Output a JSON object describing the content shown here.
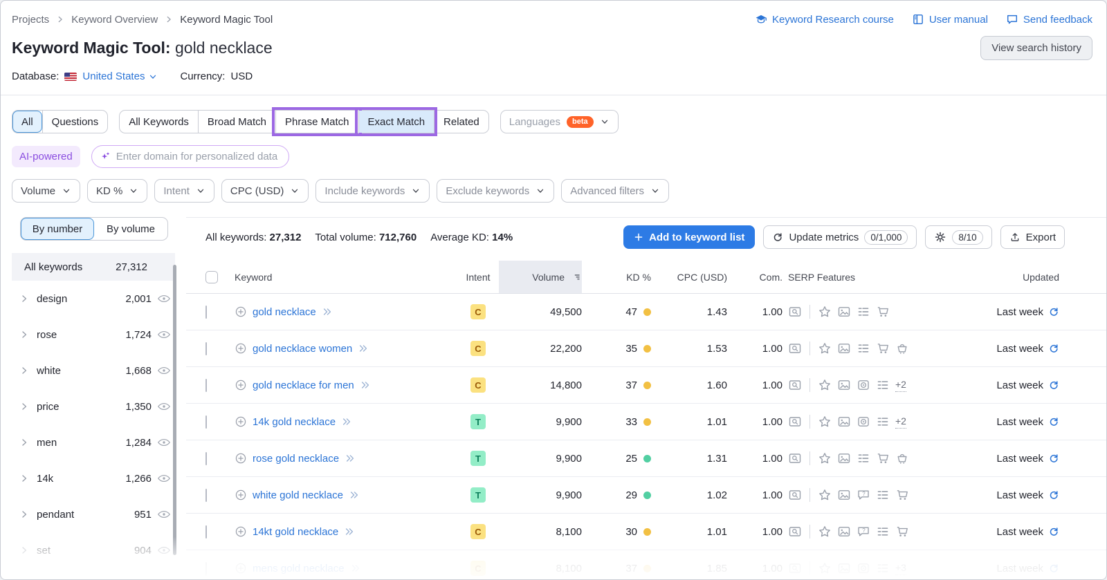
{
  "theme": {
    "accent-blue": "#2b74d6",
    "button-blue": "#2d7be5",
    "annotation-purple": "#9c68e3",
    "beta-orange": "#ff6329",
    "ai-purple": "#8a4de0",
    "intent-commercial-bg": "#fbe180",
    "intent-commercial-text": "#9a5a08",
    "intent-transactional-bg": "#93edc7",
    "intent-transactional-text": "#0c7f5b",
    "kd-medium": "#f2c043",
    "kd-easy": "#52cfa2"
  },
  "page": {
    "breadcrumb": [
      "Projects",
      "Keyword Overview",
      "Keyword Magic Tool"
    ],
    "top_links": [
      {
        "icon": "grad-cap",
        "label": "Keyword Research course"
      },
      {
        "icon": "book",
        "label": "User manual"
      },
      {
        "icon": "chat",
        "label": "Send feedback"
      }
    ],
    "title": "Keyword Magic Tool:",
    "title_query": "gold necklace",
    "view_search_history": "View search history",
    "database_label": "Database:",
    "database_value": "United States",
    "currency_label": "Currency:",
    "currency_value": "USD"
  },
  "tabs": {
    "group1": [
      "All",
      "Questions"
    ],
    "group1_selected": "All",
    "group2": [
      "All Keywords",
      "Broad Match",
      "Phrase Match",
      "Exact Match",
      "Related"
    ],
    "group2_selected": "Exact Match",
    "group2_annotated": [
      "Phrase Match",
      "Exact Match"
    ],
    "languages_label": "Languages",
    "beta_badge": "beta"
  },
  "ai_bar": {
    "label": "AI-powered",
    "placeholder": "Enter domain for personalized data"
  },
  "filter_buttons": [
    {
      "label": "Volume",
      "muted": false
    },
    {
      "label": "KD %",
      "muted": false
    },
    {
      "label": "Intent",
      "muted": true
    },
    {
      "label": "CPC (USD)",
      "muted": false
    },
    {
      "label": "Include keywords",
      "muted": true
    },
    {
      "label": "Exclude keywords",
      "muted": true
    },
    {
      "label": "Advanced filters",
      "muted": true
    }
  ],
  "sidebar": {
    "toggle": [
      "By number",
      "By volume"
    ],
    "toggle_selected": "By number",
    "all_keywords_label": "All keywords",
    "all_keywords_count": "27,312",
    "groups": [
      {
        "name": "design",
        "count": "2,001",
        "faded": false
      },
      {
        "name": "rose",
        "count": "1,724",
        "faded": false
      },
      {
        "name": "white",
        "count": "1,668",
        "faded": false
      },
      {
        "name": "price",
        "count": "1,350",
        "faded": false
      },
      {
        "name": "men",
        "count": "1,284",
        "faded": false
      },
      {
        "name": "14k",
        "count": "1,266",
        "faded": false
      },
      {
        "name": "pendant",
        "count": "951",
        "faded": false
      },
      {
        "name": "set",
        "count": "904",
        "faded": true
      }
    ]
  },
  "toolbar": {
    "stats": [
      {
        "label": "All keywords:",
        "value": "27,312"
      },
      {
        "label": "Total volume:",
        "value": "712,760"
      },
      {
        "label": "Average KD:",
        "value": "14%"
      }
    ],
    "add_button": "Add to keyword list",
    "update_button": "Update metrics",
    "update_counter": "0/1,000",
    "settings_counter": "8/10",
    "export_button": "Export"
  },
  "table": {
    "headers": {
      "keyword": "Keyword",
      "intent": "Intent",
      "volume": "Volume",
      "kd": "KD %",
      "cpc": "CPC (USD)",
      "com": "Com.",
      "serp": "SERP Features",
      "updated": "Updated"
    },
    "rows": [
      {
        "keyword": "gold necklace",
        "intent": "C",
        "volume": "49,500",
        "kd": "47",
        "kd_level": "medium",
        "cpc": "1.43",
        "com": "1.00",
        "serp": [
          "serp-preview",
          "star",
          "image",
          "list",
          "cart"
        ],
        "serp_more": "",
        "updated": "Last week",
        "faded": false
      },
      {
        "keyword": "gold necklace women",
        "intent": "C",
        "volume": "22,200",
        "kd": "35",
        "kd_level": "medium",
        "cpc": "1.53",
        "com": "1.00",
        "serp": [
          "serp-preview",
          "star",
          "image",
          "list",
          "cart",
          "cart-alt"
        ],
        "serp_more": "",
        "updated": "Last week",
        "faded": false
      },
      {
        "keyword": "gold necklace for men",
        "intent": "C",
        "volume": "14,800",
        "kd": "37",
        "kd_level": "medium",
        "cpc": "1.60",
        "com": "1.00",
        "serp": [
          "serp-preview",
          "star",
          "image",
          "video",
          "list"
        ],
        "serp_more": "+2",
        "updated": "Last week",
        "faded": false
      },
      {
        "keyword": "14k gold necklace",
        "intent": "T",
        "volume": "9,900",
        "kd": "33",
        "kd_level": "medium",
        "cpc": "1.01",
        "com": "1.00",
        "serp": [
          "serp-preview",
          "star",
          "image",
          "video",
          "list"
        ],
        "serp_more": "+2",
        "updated": "Last week",
        "faded": false
      },
      {
        "keyword": "rose gold necklace",
        "intent": "T",
        "volume": "9,900",
        "kd": "25",
        "kd_level": "easy",
        "cpc": "1.31",
        "com": "1.00",
        "serp": [
          "serp-preview",
          "star",
          "image",
          "list",
          "cart",
          "cart-alt"
        ],
        "serp_more": "",
        "updated": "Last week",
        "faded": false
      },
      {
        "keyword": "white gold necklace",
        "intent": "T",
        "volume": "9,900",
        "kd": "29",
        "kd_level": "easy",
        "cpc": "1.02",
        "com": "1.00",
        "serp": [
          "serp-preview",
          "star",
          "image",
          "faq",
          "list",
          "cart"
        ],
        "serp_more": "",
        "updated": "Last week",
        "faded": false
      },
      {
        "keyword": "14kt gold necklace",
        "intent": "C",
        "volume": "8,100",
        "kd": "30",
        "kd_level": "medium",
        "cpc": "1.01",
        "com": "1.00",
        "serp": [
          "serp-preview",
          "star",
          "image",
          "faq",
          "list",
          "cart"
        ],
        "serp_more": "",
        "updated": "Last week",
        "faded": false
      },
      {
        "keyword": "mens gold necklace",
        "intent": "C",
        "volume": "8,100",
        "kd": "37",
        "kd_level": "medium",
        "cpc": "1.85",
        "com": "1.00",
        "serp": [
          "serp-preview",
          "star",
          "image",
          "video",
          "list"
        ],
        "serp_more": "+3",
        "updated": "Last week",
        "faded": true
      }
    ]
  }
}
